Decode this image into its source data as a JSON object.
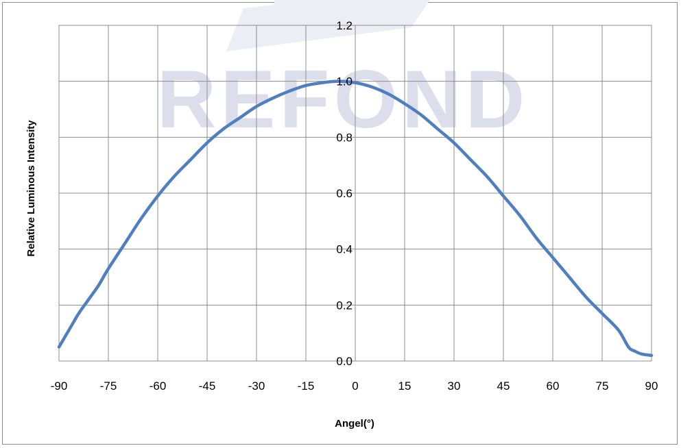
{
  "watermark": {
    "text": "REFOND",
    "color": "#dcdfeb"
  },
  "chart_data": {
    "type": "line",
    "title": "",
    "xlabel": "Angel(°)",
    "ylabel": "Relative Luminous Intensity",
    "xlim": [
      -90,
      90
    ],
    "ylim": [
      0,
      1.2
    ],
    "x_ticks": [
      -90,
      -75,
      -60,
      -45,
      -30,
      -15,
      0,
      15,
      30,
      45,
      60,
      75,
      90
    ],
    "x_tick_labels": [
      "-90",
      "-75",
      "-60",
      "-45",
      "-30",
      "-15",
      "0",
      "15",
      "30",
      "45",
      "60",
      "75",
      "90"
    ],
    "y_ticks": [
      0,
      0.2,
      0.4,
      0.6,
      0.8,
      1.0,
      1.2
    ],
    "y_tick_labels": [
      "0.0",
      "0.2",
      "0.4",
      "0.6",
      "0.8",
      "1.0",
      "1.2"
    ],
    "grid": true,
    "legend": "none",
    "series_color": "#4f7fc1",
    "series": [
      {
        "x": [
          -90,
          -87,
          -84,
          -81,
          -78,
          -75,
          -70,
          -65,
          -60,
          -55,
          -50,
          -45,
          -40,
          -35,
          -30,
          -25,
          -20,
          -15,
          -10,
          -5,
          0,
          5,
          10,
          15,
          20,
          25,
          30,
          35,
          40,
          45,
          50,
          55,
          60,
          65,
          70,
          75,
          80,
          83,
          85,
          87,
          90
        ],
        "y": [
          0.05,
          0.11,
          0.17,
          0.22,
          0.27,
          0.33,
          0.42,
          0.51,
          0.59,
          0.66,
          0.72,
          0.78,
          0.83,
          0.87,
          0.91,
          0.94,
          0.965,
          0.985,
          0.995,
          1.0,
          0.995,
          0.98,
          0.955,
          0.92,
          0.88,
          0.83,
          0.78,
          0.72,
          0.66,
          0.59,
          0.52,
          0.44,
          0.37,
          0.3,
          0.23,
          0.17,
          0.11,
          0.05,
          0.035,
          0.025,
          0.02
        ]
      }
    ]
  }
}
